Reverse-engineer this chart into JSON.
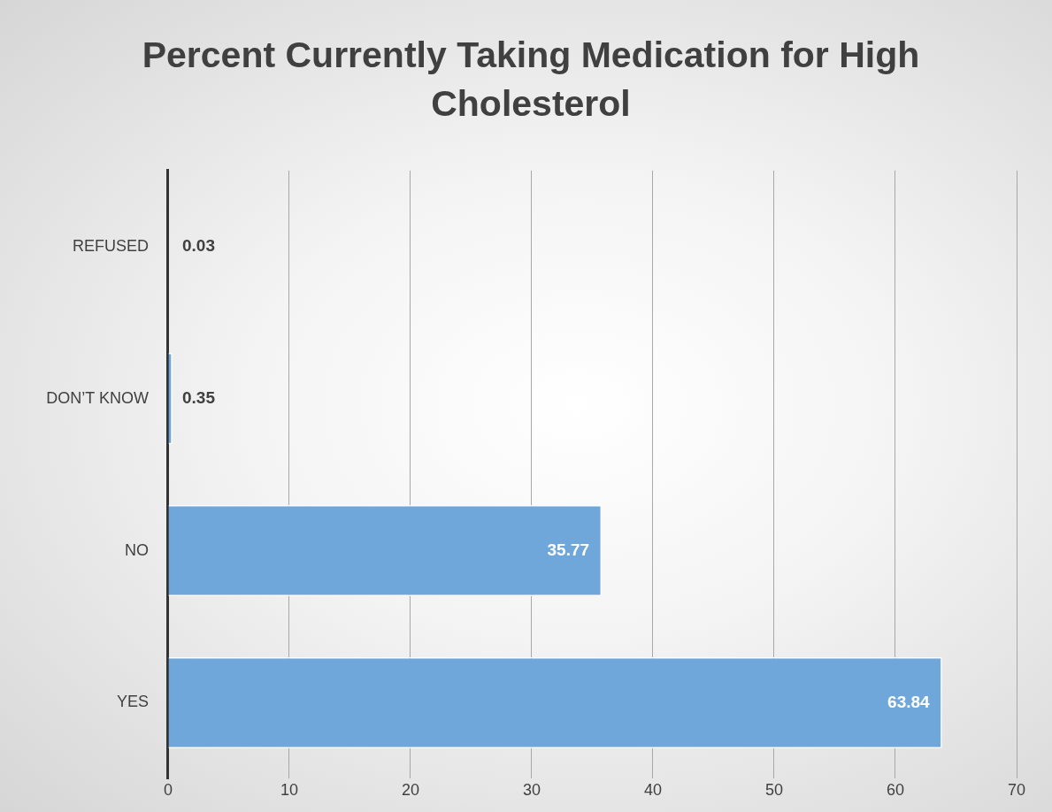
{
  "chart_data": {
    "type": "bar",
    "orientation": "horizontal",
    "title": "Percent Currently Taking Medication for High Cholesterol",
    "categories": [
      "REFUSED",
      "DON’T KNOW",
      "NO",
      "YES"
    ],
    "values": [
      0.03,
      0.35,
      35.77,
      63.84
    ],
    "color": "#70a7db",
    "xlim": [
      0,
      70
    ],
    "xticks": [
      0,
      10,
      20,
      30,
      40,
      50,
      60,
      70
    ],
    "grid": "x",
    "data_labels": true,
    "legend": false
  }
}
